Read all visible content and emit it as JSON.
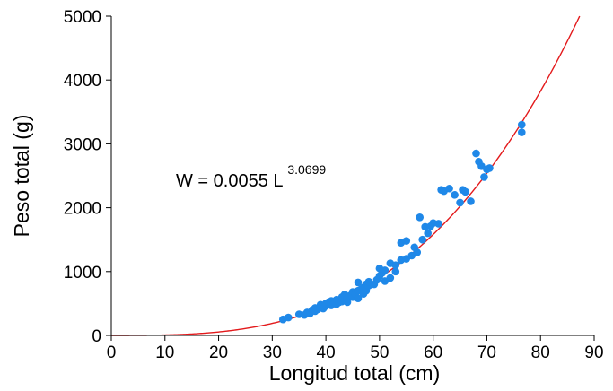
{
  "chart_data": {
    "type": "scatter",
    "title": "",
    "xlabel": "Longitud total (cm)",
    "ylabel": "Peso total (g)",
    "xlim": [
      0,
      90
    ],
    "ylim": [
      0,
      5000
    ],
    "x_ticks": [
      0,
      10,
      20,
      30,
      40,
      50,
      60,
      70,
      80,
      90
    ],
    "y_ticks": [
      0,
      1000,
      2000,
      3000,
      4000,
      5000
    ],
    "grid": false,
    "equation": {
      "prefix": "W = 0.0055 L",
      "exponent": "3.0699",
      "a": 0.0055,
      "b": 3.0699
    },
    "colors": {
      "points": "#1f88e8",
      "fit": "#e31a1c",
      "axis": "#000000"
    },
    "series": [
      {
        "values": [
          [
            32,
            250
          ],
          [
            33,
            280
          ],
          [
            35,
            330
          ],
          [
            36,
            320
          ],
          [
            36.5,
            360
          ],
          [
            37,
            340
          ],
          [
            37.5,
            400
          ],
          [
            38,
            380
          ],
          [
            38,
            430
          ],
          [
            38.5,
            410
          ],
          [
            39,
            450
          ],
          [
            39,
            480
          ],
          [
            39.5,
            420
          ],
          [
            40,
            460
          ],
          [
            40,
            500
          ],
          [
            40.5,
            520
          ],
          [
            41,
            470
          ],
          [
            41,
            540
          ],
          [
            41.5,
            500
          ],
          [
            42,
            490
          ],
          [
            42,
            560
          ],
          [
            42.5,
            520
          ],
          [
            43,
            530
          ],
          [
            43,
            600
          ],
          [
            43.5,
            560
          ],
          [
            43.5,
            640
          ],
          [
            44,
            580
          ],
          [
            44,
            520
          ],
          [
            44.5,
            620
          ],
          [
            45,
            600
          ],
          [
            45,
            680
          ],
          [
            45.5,
            650
          ],
          [
            46,
            580
          ],
          [
            46,
            700
          ],
          [
            46,
            830
          ],
          [
            46.5,
            720
          ],
          [
            47,
            650
          ],
          [
            47,
            750
          ],
          [
            47.5,
            700
          ],
          [
            47.5,
            800
          ],
          [
            48,
            780
          ],
          [
            48,
            840
          ],
          [
            49,
            800
          ],
          [
            49.5,
            870
          ],
          [
            50,
            930
          ],
          [
            50,
            1050
          ],
          [
            50.5,
            980
          ],
          [
            51,
            850
          ],
          [
            51,
            1020
          ],
          [
            52,
            900
          ],
          [
            52,
            1130
          ],
          [
            53,
            1000
          ],
          [
            53,
            1100
          ],
          [
            54,
            1180
          ],
          [
            54,
            1450
          ],
          [
            55,
            1200
          ],
          [
            55,
            1480
          ],
          [
            56,
            1250
          ],
          [
            56.5,
            1380
          ],
          [
            57,
            1300
          ],
          [
            57.5,
            1850
          ],
          [
            58,
            1500
          ],
          [
            58.5,
            1700
          ],
          [
            59,
            1600
          ],
          [
            59.5,
            1710
          ],
          [
            60,
            1760
          ],
          [
            61,
            1750
          ],
          [
            61.5,
            2280
          ],
          [
            62,
            2260
          ],
          [
            63,
            2300
          ],
          [
            64,
            2200
          ],
          [
            65,
            2080
          ],
          [
            65.5,
            2280
          ],
          [
            66,
            2250
          ],
          [
            67,
            2100
          ],
          [
            68,
            2850
          ],
          [
            68.5,
            2720
          ],
          [
            69,
            2650
          ],
          [
            69.5,
            2480
          ],
          [
            70,
            2600
          ],
          [
            70.5,
            2620
          ],
          [
            76.5,
            3180
          ],
          [
            76.5,
            3300
          ]
        ]
      }
    ]
  }
}
